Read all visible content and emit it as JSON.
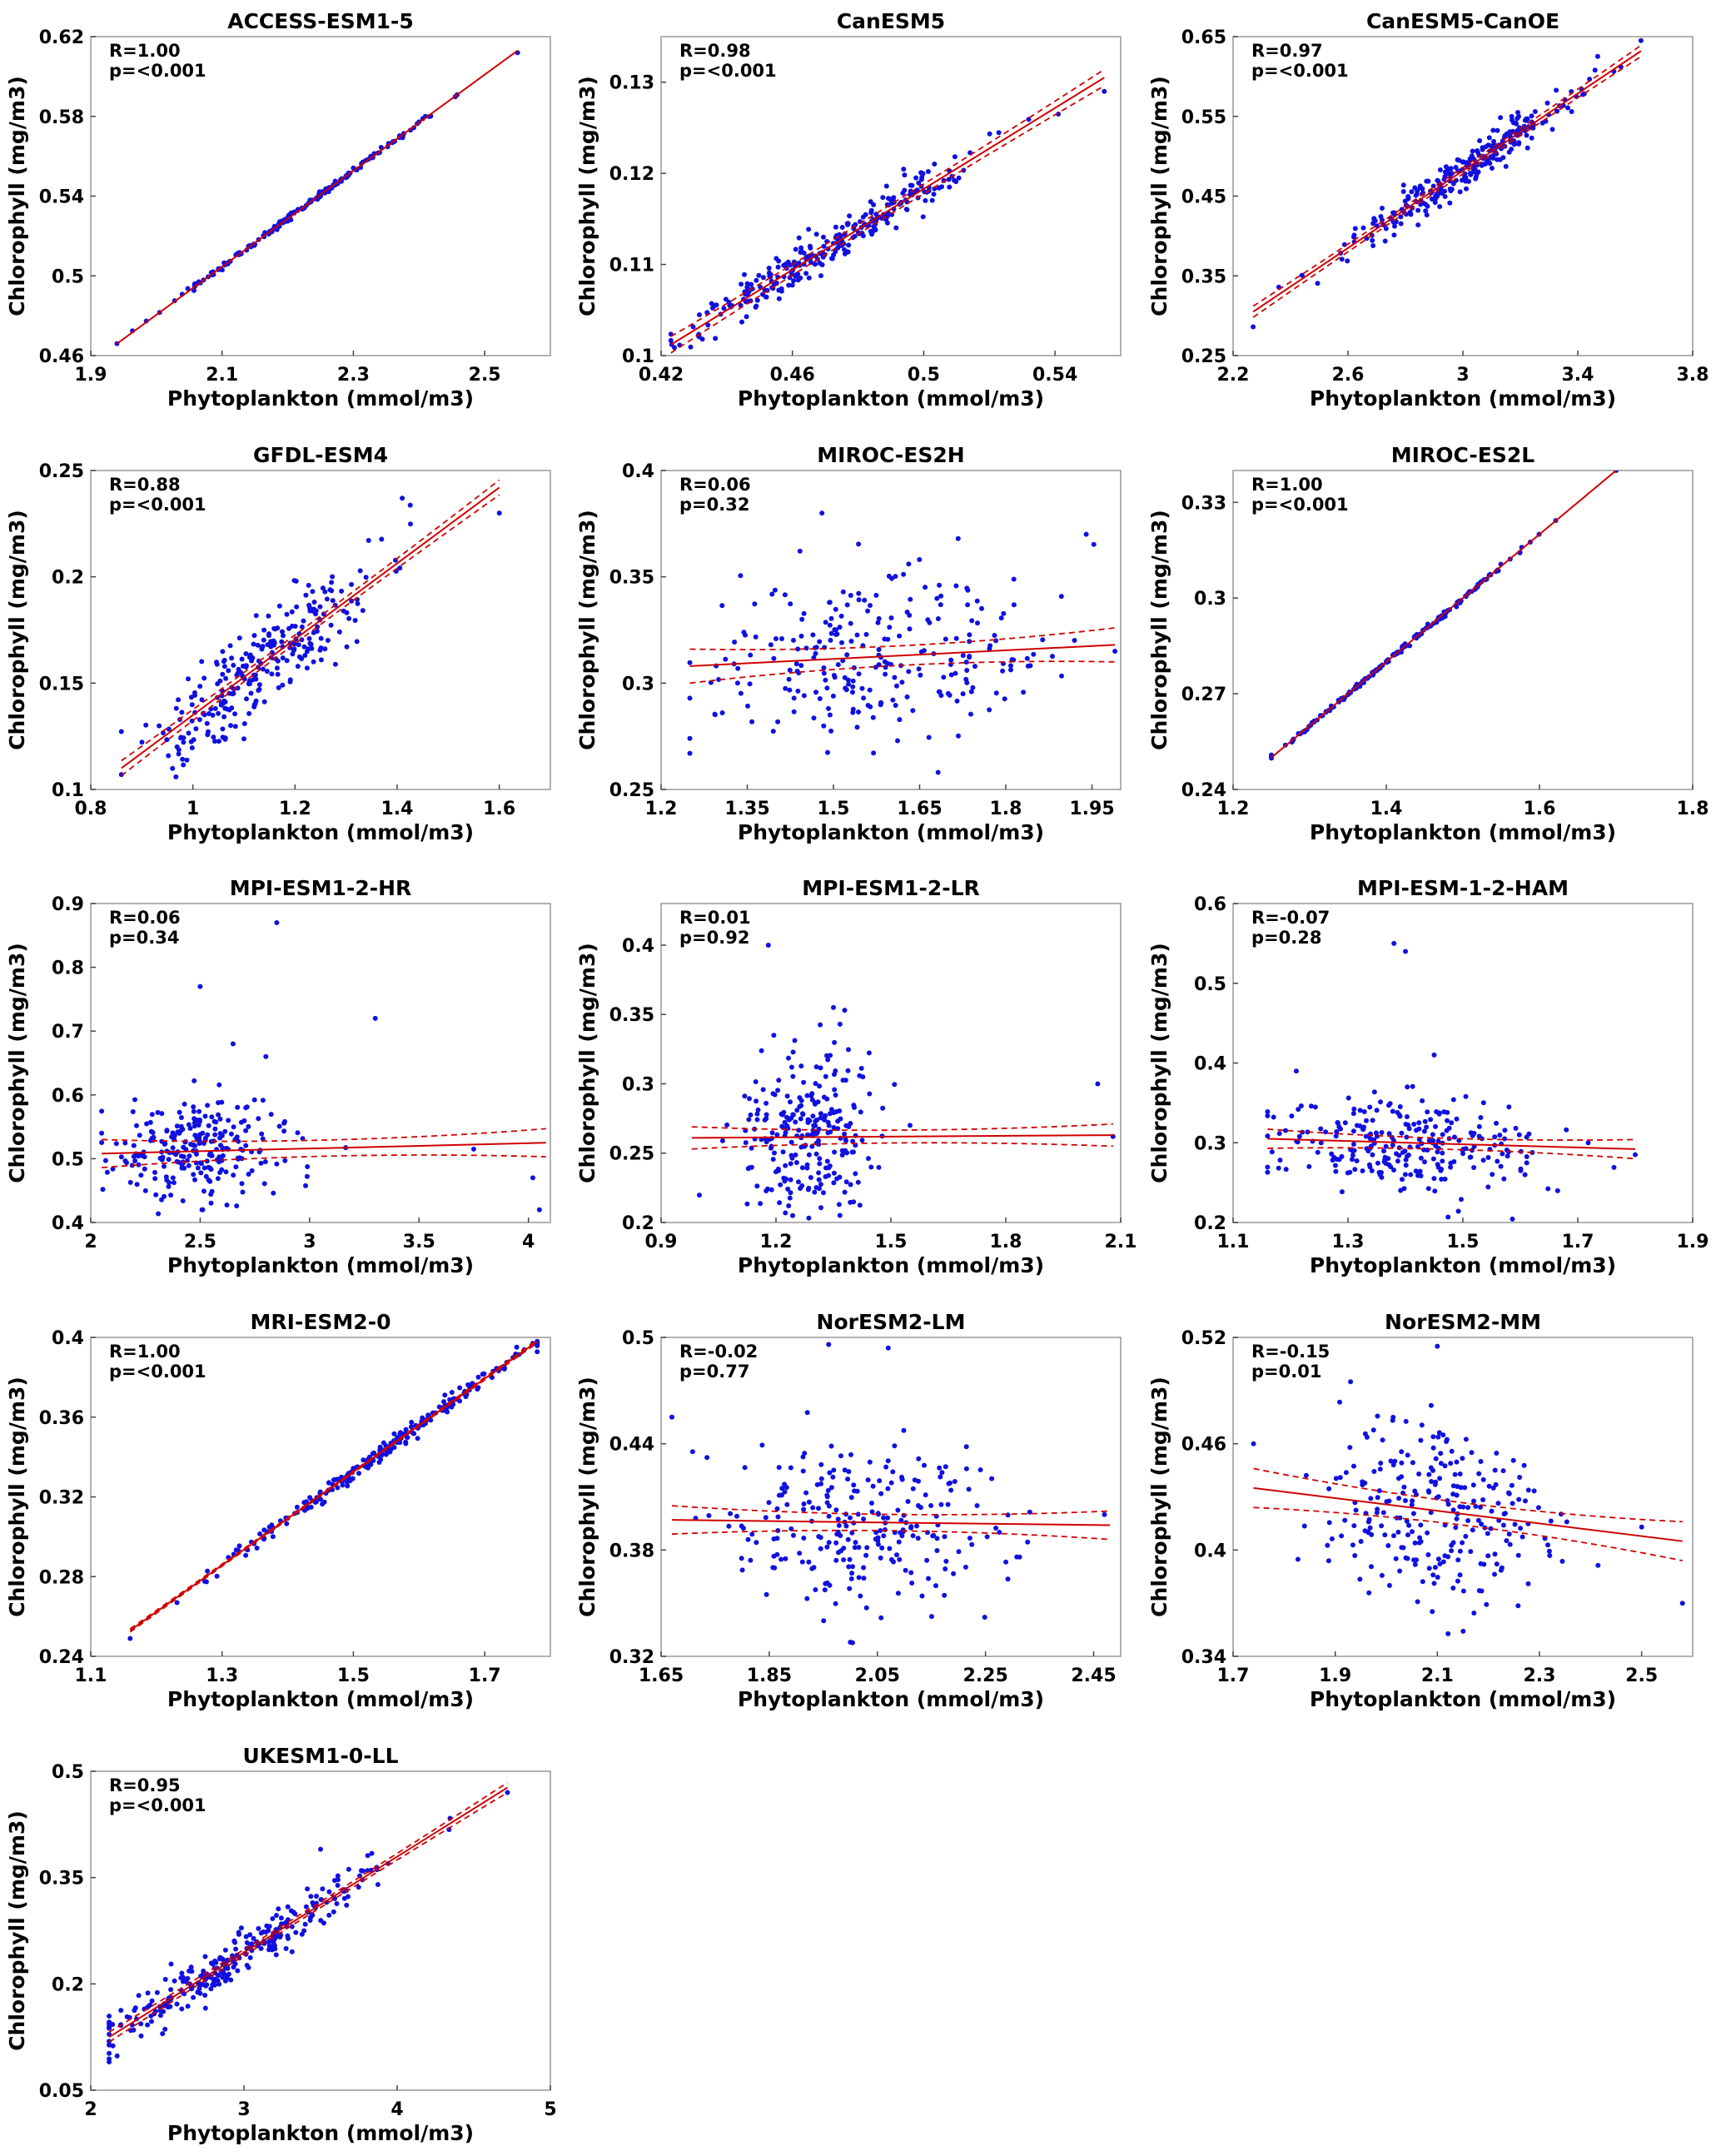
{
  "figure": {
    "x_label": "Phytoplankton (mmol/m3)",
    "y_label": "Chlorophyll (mg/m3)"
  },
  "colors": {
    "points": "#1010e0",
    "fit": "#d00000",
    "frame": "#999999"
  },
  "chart_data": [
    {
      "type": "scatter",
      "title": "ACCESS-ESM1-5",
      "r_label": "R=1.00",
      "p_label": "p=<0.001",
      "xlim": [
        1.9,
        2.6
      ],
      "ylim": [
        0.46,
        0.62
      ],
      "xticks": [
        "1.9",
        "2.1",
        "2.3",
        "2.5"
      ],
      "yticks": [
        "0.46",
        "0.5",
        "0.54",
        "0.58",
        "0.62"
      ],
      "fit": {
        "x": [
          1.94,
          2.55
        ],
        "y": [
          0.466,
          0.613
        ],
        "ci": 0.0
      },
      "points": {
        "n": 180,
        "seed": 11,
        "cx": 2.22,
        "sx": 0.1,
        "xmin": 1.94,
        "xmax": 2.55,
        "noise": 0.0007,
        "extras": [
          [
            1.94,
            0.466
          ],
          [
            2.55,
            0.612
          ]
        ]
      }
    },
    {
      "type": "scatter",
      "title": "CanESM5",
      "r_label": "R=0.98",
      "p_label": "p=<0.001",
      "xlim": [
        0.42,
        0.56
      ],
      "ylim": [
        0.1,
        0.135
      ],
      "xticks": [
        "0.42",
        "0.46",
        "0.5",
        "0.54"
      ],
      "yticks": [
        "0.1",
        "0.11",
        "0.12",
        "0.13"
      ],
      "fit": {
        "x": [
          0.423,
          0.555
        ],
        "y": [
          0.1012,
          0.1305
        ],
        "ci": 0.0009
      },
      "points": {
        "n": 280,
        "seed": 22,
        "cx": 0.475,
        "sx": 0.021,
        "xmin": 0.423,
        "xmax": 0.556,
        "noise": 0.0011,
        "extras": [
          [
            0.555,
            0.129
          ],
          [
            0.541,
            0.1265
          ]
        ]
      }
    },
    {
      "type": "scatter",
      "title": "CanESM5-CanOE",
      "r_label": "R=0.97",
      "p_label": "p=<0.001",
      "xlim": [
        2.2,
        3.8
      ],
      "ylim": [
        0.25,
        0.65
      ],
      "xticks": [
        "2.2",
        "2.6",
        "3",
        "3.4",
        "3.8"
      ],
      "yticks": [
        "0.25",
        "0.35",
        "0.45",
        "0.55",
        "0.65"
      ],
      "fit": {
        "x": [
          2.27,
          3.62
        ],
        "y": [
          0.305,
          0.632
        ],
        "ci": 0.007
      },
      "points": {
        "n": 280,
        "seed": 33,
        "cx": 3.0,
        "sx": 0.2,
        "xmin": 2.27,
        "xmax": 3.63,
        "noise": 0.012,
        "extras": [
          [
            2.27,
            0.286
          ],
          [
            3.62,
            0.645
          ],
          [
            3.46,
            0.608
          ],
          [
            3.55,
            0.612
          ]
        ]
      }
    },
    {
      "type": "scatter",
      "title": "GFDL-ESM4",
      "r_label": "R=0.88",
      "p_label": "p=<0.001",
      "xlim": [
        0.8,
        1.7
      ],
      "ylim": [
        0.1,
        0.25
      ],
      "xticks": [
        "0.8",
        "1",
        "1.2",
        "1.4",
        "1.6"
      ],
      "yticks": [
        "0.1",
        "0.15",
        "0.2",
        "0.25"
      ],
      "fit": {
        "x": [
          0.86,
          1.6
        ],
        "y": [
          0.11,
          0.242
        ],
        "ci": 0.0035
      },
      "points": {
        "n": 270,
        "seed": 44,
        "cx": 1.14,
        "sx": 0.11,
        "xmin": 0.86,
        "xmax": 1.6,
        "noise": 0.012,
        "extras": [
          [
            0.86,
            0.107
          ],
          [
            1.41,
            0.237
          ],
          [
            1.6,
            0.23
          ]
        ]
      }
    },
    {
      "type": "scatter",
      "title": "MIROC-ES2H",
      "r_label": "R=0.06",
      "p_label": "p=0.32",
      "xlim": [
        1.2,
        2.0
      ],
      "ylim": [
        0.25,
        0.4
      ],
      "xticks": [
        "1.2",
        "1.35",
        "1.5",
        "1.65",
        "1.8",
        "1.95"
      ],
      "yticks": [
        "0.25",
        "0.3",
        "0.35",
        "0.4"
      ],
      "fit": {
        "x": [
          1.25,
          1.99
        ],
        "y": [
          0.308,
          0.318
        ],
        "ci": 0.008
      },
      "points": {
        "n": 250,
        "seed": 55,
        "cx": 1.57,
        "sx": 0.14,
        "xmin": 1.25,
        "xmax": 1.99,
        "noise": 0.02,
        "extras": [
          [
            1.48,
            0.38
          ],
          [
            1.94,
            0.37
          ],
          [
            1.25,
            0.267
          ],
          [
            1.25,
            0.274
          ],
          [
            1.99,
            0.315
          ]
        ]
      }
    },
    {
      "type": "scatter",
      "title": "MIROC-ES2L",
      "r_label": "R=1.00",
      "p_label": "p=<0.001",
      "xlim": [
        1.2,
        1.8
      ],
      "ylim": [
        0.24,
        0.34
      ],
      "xticks": [
        "1.2",
        "1.4",
        "1.6",
        "1.8"
      ],
      "yticks": [
        "0.24",
        "0.27",
        "0.3",
        "0.33"
      ],
      "fit": {
        "x": [
          1.25,
          1.7
        ],
        "y": [
          0.25,
          0.34
        ],
        "ci": 0.0
      },
      "points": {
        "n": 170,
        "seed": 66,
        "cx": 1.42,
        "sx": 0.08,
        "xmin": 1.25,
        "xmax": 1.7,
        "noise": 0.0004,
        "extras": [
          [
            1.25,
            0.25
          ],
          [
            1.7,
            0.34
          ]
        ]
      }
    },
    {
      "type": "scatter",
      "title": "MPI-ESM1-2-HR",
      "r_label": "R=0.06",
      "p_label": "p=0.34",
      "xlim": [
        2.0,
        4.1
      ],
      "ylim": [
        0.4,
        0.9
      ],
      "xticks": [
        "2",
        "2.5",
        "3",
        "3.5",
        "4"
      ],
      "yticks": [
        "0.4",
        "0.5",
        "0.6",
        "0.7",
        "0.8",
        "0.9"
      ],
      "fit": {
        "x": [
          2.05,
          4.08
        ],
        "y": [
          0.508,
          0.525
        ],
        "ci": 0.022
      },
      "points": {
        "n": 250,
        "seed": 77,
        "cx": 2.48,
        "sx": 0.2,
        "xmin": 2.05,
        "xmax": 3.2,
        "noise": 0.04,
        "extras": [
          [
            2.85,
            0.87
          ],
          [
            2.5,
            0.77
          ],
          [
            3.3,
            0.72
          ],
          [
            2.65,
            0.68
          ],
          [
            2.8,
            0.66
          ],
          [
            4.05,
            0.42
          ],
          [
            4.02,
            0.47
          ],
          [
            3.75,
            0.515
          ]
        ]
      }
    },
    {
      "type": "scatter",
      "title": "MPI-ESM1-2-LR",
      "r_label": "R=0.01",
      "p_label": "p=0.92",
      "xlim": [
        0.9,
        2.1
      ],
      "ylim": [
        0.2,
        0.43
      ],
      "xticks": [
        "0.9",
        "1.2",
        "1.5",
        "1.8",
        "2.1"
      ],
      "yticks": [
        "0.2",
        "0.25",
        "0.3",
        "0.35",
        "0.4"
      ],
      "fit": {
        "x": [
          0.98,
          2.08
        ],
        "y": [
          0.261,
          0.263
        ],
        "ci": 0.008
      },
      "points": {
        "n": 260,
        "seed": 88,
        "cx": 1.28,
        "sx": 0.09,
        "xmin": 1.0,
        "xmax": 1.6,
        "noise": 0.03,
        "extras": [
          [
            1.18,
            0.4
          ],
          [
            1.35,
            0.355
          ],
          [
            2.04,
            0.3
          ],
          [
            2.08,
            0.262
          ],
          [
            1.55,
            0.27
          ]
        ]
      }
    },
    {
      "type": "scatter",
      "title": "MPI-ESM-1-2-HAM",
      "r_label": "R=-0.07",
      "p_label": "p=0.28",
      "xlim": [
        1.1,
        1.9
      ],
      "ylim": [
        0.2,
        0.6
      ],
      "xticks": [
        "1.1",
        "1.3",
        "1.5",
        "1.7",
        "1.9"
      ],
      "yticks": [
        "0.2",
        "0.3",
        "0.4",
        "0.5",
        "0.6"
      ],
      "fit": {
        "x": [
          1.16,
          1.8
        ],
        "y": [
          0.305,
          0.292
        ],
        "ci": 0.012
      },
      "points": {
        "n": 260,
        "seed": 99,
        "cx": 1.4,
        "sx": 0.13,
        "xmin": 1.16,
        "xmax": 1.8,
        "noise": 0.03,
        "extras": [
          [
            1.38,
            0.55
          ],
          [
            1.4,
            0.54
          ],
          [
            1.45,
            0.41
          ],
          [
            1.21,
            0.39
          ],
          [
            1.8,
            0.285
          ]
        ]
      }
    },
    {
      "type": "scatter",
      "title": "MRI-ESM2-0",
      "r_label": "R=1.00",
      "p_label": "p=<0.001",
      "xlim": [
        1.1,
        1.8
      ],
      "ylim": [
        0.24,
        0.4
      ],
      "xticks": [
        "1.1",
        "1.3",
        "1.5",
        "1.7"
      ],
      "yticks": [
        "0.24",
        "0.28",
        "0.32",
        "0.36",
        "0.4"
      ],
      "fit": {
        "x": [
          1.16,
          1.78
        ],
        "y": [
          0.253,
          0.398
        ],
        "ci": 0.0008
      },
      "points": {
        "n": 230,
        "seed": 111,
        "cx": 1.56,
        "sx": 0.12,
        "xmin": 1.16,
        "xmax": 1.78,
        "noise": 0.0022,
        "extras": [
          [
            1.16,
            0.249
          ],
          [
            1.78,
            0.398
          ]
        ]
      }
    },
    {
      "type": "scatter",
      "title": "NorESM2-LM",
      "r_label": "R=-0.02",
      "p_label": "p=0.77",
      "xlim": [
        1.65,
        2.5
      ],
      "ylim": [
        0.32,
        0.5
      ],
      "xticks": [
        "1.65",
        "1.85",
        "2.05",
        "2.25",
        "2.45"
      ],
      "yticks": [
        "0.32",
        "0.38",
        "0.44",
        "0.5"
      ],
      "fit": {
        "x": [
          1.67,
          2.48
        ],
        "y": [
          0.397,
          0.394
        ],
        "ci": 0.008
      },
      "points": {
        "n": 250,
        "seed": 122,
        "cx": 2.03,
        "sx": 0.12,
        "xmin": 1.67,
        "xmax": 2.48,
        "noise": 0.023,
        "extras": [
          [
            1.67,
            0.455
          ],
          [
            1.96,
            0.496
          ],
          [
            2.07,
            0.494
          ],
          [
            2.0,
            0.328
          ],
          [
            2.47,
            0.4
          ]
        ]
      }
    },
    {
      "type": "scatter",
      "title": "NorESM2-MM",
      "r_label": "R=-0.15",
      "p_label": "p=0.01",
      "xlim": [
        1.7,
        2.6
      ],
      "ylim": [
        0.34,
        0.52
      ],
      "xticks": [
        "1.7",
        "1.9",
        "2.1",
        "2.3",
        "2.5"
      ],
      "yticks": [
        "0.34",
        "0.4",
        "0.46",
        "0.52"
      ],
      "fit": {
        "x": [
          1.74,
          2.58
        ],
        "y": [
          0.435,
          0.405
        ],
        "ci": 0.011
      },
      "points": {
        "n": 250,
        "seed": 133,
        "cx": 2.1,
        "sx": 0.12,
        "xmin": 1.74,
        "xmax": 2.58,
        "noise": 0.024,
        "extras": [
          [
            2.1,
            0.515
          ],
          [
            1.93,
            0.495
          ],
          [
            2.58,
            0.37
          ],
          [
            1.74,
            0.46
          ],
          [
            2.5,
            0.413
          ]
        ]
      }
    },
    {
      "type": "scatter",
      "title": "UKESM1-0-LL",
      "r_label": "R=0.95",
      "p_label": "p=<0.001",
      "xlim": [
        2.0,
        5.0
      ],
      "ylim": [
        0.05,
        0.5
      ],
      "xticks": [
        "2",
        "3",
        "4",
        "5"
      ],
      "yticks": [
        "0.05",
        "0.2",
        "0.35",
        "0.5"
      ],
      "fit": {
        "x": [
          2.12,
          4.72
        ],
        "y": [
          0.125,
          0.477
        ],
        "ci": 0.007
      },
      "points": {
        "n": 290,
        "seed": 144,
        "cx": 2.95,
        "sx": 0.45,
        "xmin": 2.12,
        "xmax": 4.72,
        "noise": 0.018,
        "extras": [
          [
            2.12,
            0.09
          ],
          [
            4.72,
            0.47
          ],
          [
            3.5,
            0.39
          ]
        ]
      }
    }
  ]
}
